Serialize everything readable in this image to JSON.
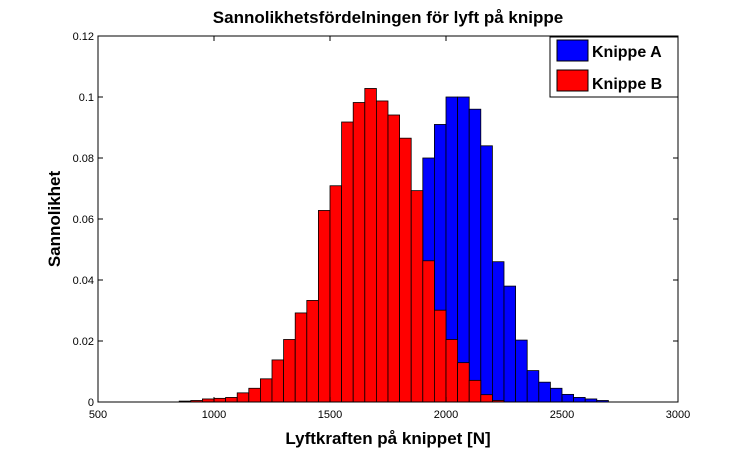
{
  "chart_data": {
    "type": "bar",
    "title": "Sannolikhetsfördelningen för lyft på knippe",
    "xlabel": "Lyftkraften på knippet [N]",
    "ylabel": "Sannolikhet",
    "xlim": [
      500,
      3000
    ],
    "ylim": [
      0,
      0.12
    ],
    "xticks": [
      500,
      1000,
      1500,
      2000,
      2500,
      3000
    ],
    "xtick_labels": [
      "500",
      "1000",
      "1500",
      "2000",
      "2500",
      "3000"
    ],
    "yticks": [
      0,
      0.02,
      0.04,
      0.06,
      0.08,
      0.1,
      0.12
    ],
    "ytick_labels": [
      "0",
      "0.02",
      "0.04",
      "0.06",
      "0.08",
      "0.1",
      "0.12"
    ],
    "bin_width": 50,
    "legend_position": "top-right",
    "series": [
      {
        "name": "Knippe A",
        "color": "#0000ff",
        "bin_starts": [
          1300,
          1350,
          1400,
          1450,
          1500,
          1550,
          1600,
          1650,
          1700,
          1750,
          1800,
          1850,
          1900,
          1950,
          2000,
          2050,
          2100,
          2150,
          2200,
          2250,
          2300,
          2350,
          2400,
          2450,
          2500,
          2550,
          2600,
          2650
        ],
        "values": [
          0.0005,
          0.001,
          0.0015,
          0.002,
          0.0035,
          0.005,
          0.0075,
          0.012,
          0.019,
          0.045,
          0.064,
          0.064,
          0.08,
          0.091,
          0.1,
          0.1,
          0.096,
          0.084,
          0.046,
          0.038,
          0.0203,
          0.0103,
          0.0065,
          0.0045,
          0.0025,
          0.0015,
          0.001,
          0.0005
        ]
      },
      {
        "name": "Knippe B",
        "color": "#ff0000",
        "bin_starts": [
          850,
          900,
          950,
          1000,
          1050,
          1100,
          1150,
          1200,
          1250,
          1300,
          1350,
          1400,
          1450,
          1500,
          1550,
          1600,
          1650,
          1700,
          1750,
          1800,
          1850,
          1900,
          1950,
          2000,
          2050,
          2100,
          2150,
          2200
        ],
        "values": [
          0.0003,
          0.0005,
          0.001,
          0.0012,
          0.0015,
          0.003,
          0.0045,
          0.0076,
          0.0138,
          0.0205,
          0.0292,
          0.0333,
          0.0628,
          0.0709,
          0.0918,
          0.0982,
          0.1028,
          0.0987,
          0.0941,
          0.0865,
          0.0693,
          0.0463,
          0.0301,
          0.0205,
          0.0129,
          0.0071,
          0.0024,
          0.0005
        ]
      }
    ]
  }
}
